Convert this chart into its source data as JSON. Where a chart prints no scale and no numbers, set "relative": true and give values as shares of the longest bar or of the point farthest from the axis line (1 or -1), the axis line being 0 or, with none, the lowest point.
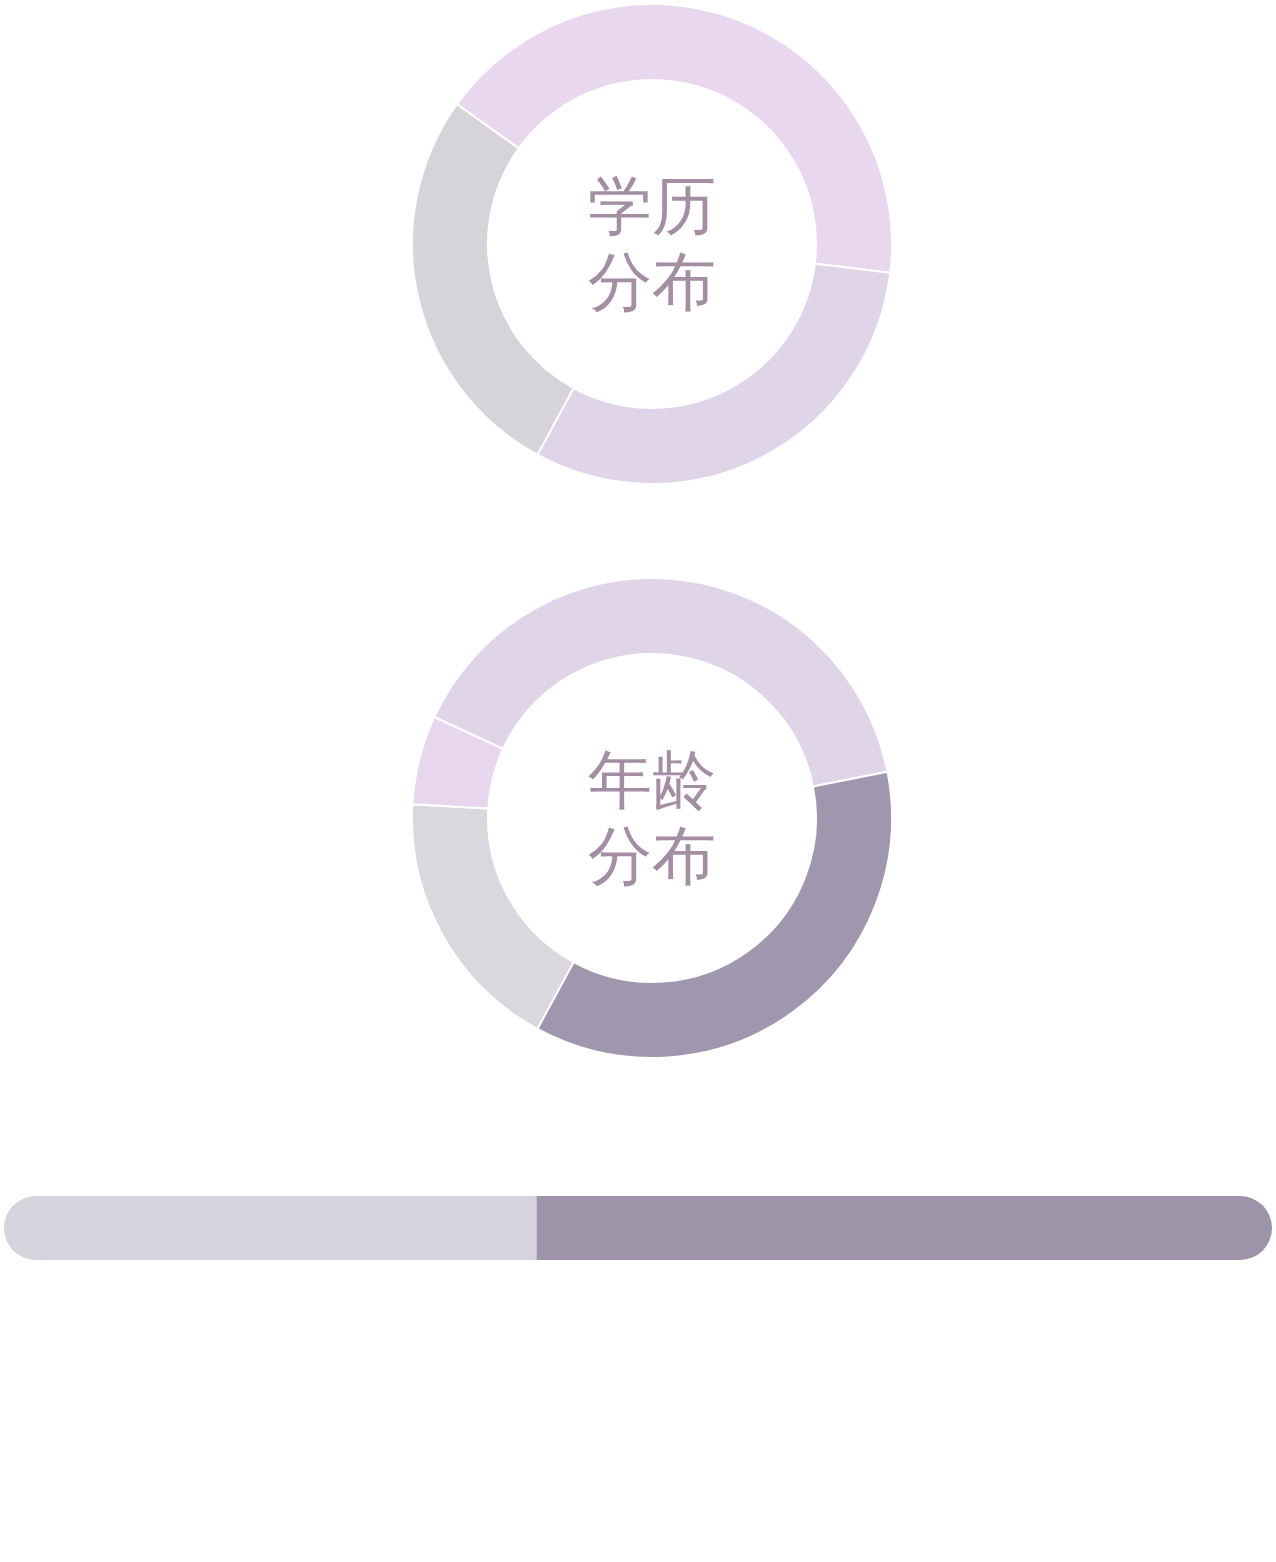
{
  "chart_data": [
    {
      "type": "donut",
      "title": "学历分布",
      "categories": [
        null,
        null,
        null
      ],
      "values": [
        27,
        42,
        31
      ],
      "colors": [
        "#d6d3da",
        "#e8d7ef",
        "#dfd4e8"
      ]
    },
    {
      "type": "donut",
      "title": "年龄分布",
      "categories": [
        null,
        null,
        null,
        null
      ],
      "values": [
        18,
        6,
        40,
        36
      ],
      "colors": [
        "#dad7de",
        "#e8d6ee",
        "#dfd4e8",
        "#a097ae"
      ]
    },
    {
      "type": "bar",
      "orientation": "horizontal",
      "stacked": true,
      "relative": true,
      "categories": [
        null
      ],
      "series": [
        {
          "color": "#d7d3dc",
          "values": [
            0.42
          ]
        },
        {
          "color": "#9e94a9",
          "values": [
            0.58
          ]
        }
      ]
    }
  ]
}
